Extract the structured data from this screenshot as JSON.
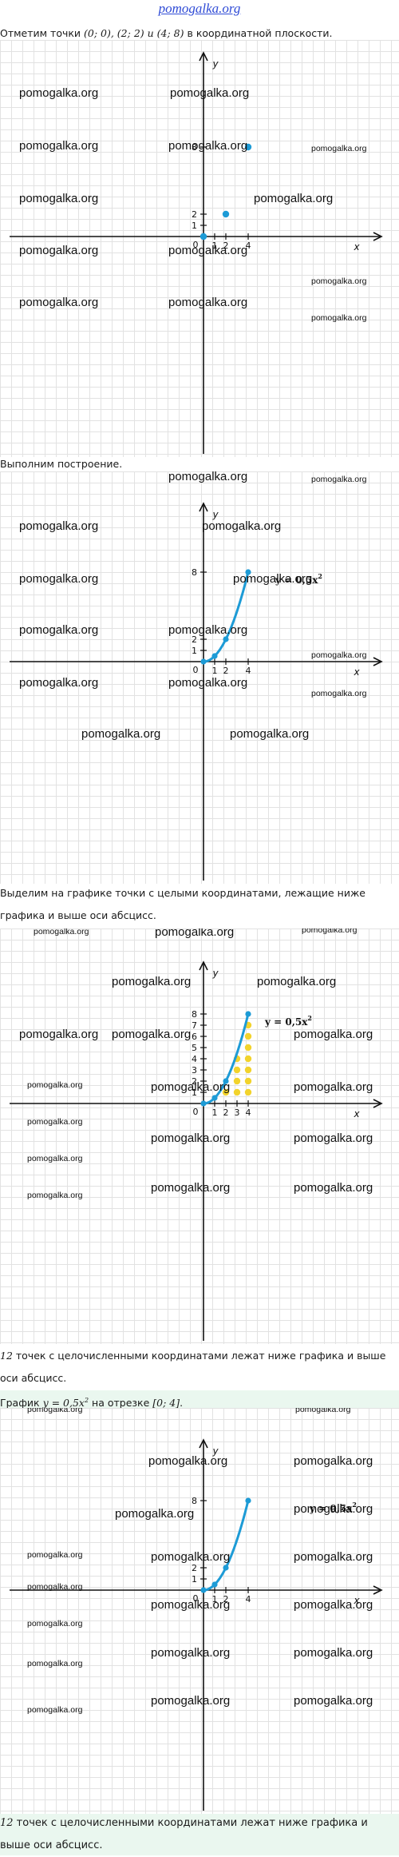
{
  "site": {
    "title": "pomogalka.org"
  },
  "watermark": "pomogalka.org",
  "colors": {
    "curve": "#1d9bd6",
    "points": "#f2d32c",
    "band": "#eaf7ef",
    "title": "#2f4bd6"
  },
  "texts": {
    "p1_a": "Отметим точки ",
    "p1_math": "(0; 0), (2; 2) и (4; 8)",
    "p1_b": " в координатной плоскости.",
    "p2": "Выполним построение.",
    "p3": "Выделим на графике точки с целыми координатами, лежащие ниже графика и выше оси абсцисс.",
    "p4_num": "12",
    "p4": " точек с целочисленными координатами лежат ниже графика и выше оси абсцисс.",
    "p5_a": "График ",
    "p5_math": "y = 0,5x",
    "p5_exp": "2",
    "p5_b": " на отрезке ",
    "p5_seg": "[0; 4]",
    "p5_c": ".",
    "p6_num": "12",
    "p6": " точек с целочисленными координатами лежат ниже графика и выше оси абсцисс."
  },
  "axes": {
    "x_label": "x",
    "y_label": "y",
    "origin": "0",
    "x_ticks": [
      "1",
      "2",
      "4"
    ],
    "x_ticks_full": [
      "1",
      "2",
      "3",
      "4"
    ]
  },
  "chart_data": [
    {
      "type": "scatter",
      "points": [
        [
          0,
          0
        ],
        [
          2,
          2
        ],
        [
          4,
          8
        ]
      ],
      "y_ticks": [
        1,
        2,
        8
      ]
    },
    {
      "type": "line",
      "function": "y = 0,5x^2",
      "label": "y = 0,5x",
      "label_exp": "2",
      "x_range": [
        0,
        4
      ],
      "marked_points": [
        [
          0,
          0
        ],
        [
          1,
          0.5
        ],
        [
          2,
          2
        ],
        [
          4,
          8
        ]
      ],
      "y_ticks": [
        1,
        2,
        8
      ]
    },
    {
      "type": "line",
      "function": "y = 0,5x^2",
      "label": "y = 0,5x",
      "label_exp": "2",
      "x_range": [
        0,
        4
      ],
      "marked_points": [
        [
          0,
          0
        ],
        [
          1,
          0.5
        ],
        [
          2,
          2
        ],
        [
          4,
          8
        ]
      ],
      "y_ticks": [
        1,
        2,
        3,
        4,
        5,
        6,
        7,
        8
      ],
      "integer_points": [
        [
          2,
          1
        ],
        [
          3,
          1
        ],
        [
          3,
          2
        ],
        [
          3,
          3
        ],
        [
          3,
          4
        ],
        [
          4,
          1
        ],
        [
          4,
          2
        ],
        [
          4,
          3
        ],
        [
          4,
          4
        ],
        [
          4,
          5
        ],
        [
          4,
          6
        ],
        [
          4,
          7
        ]
      ]
    },
    {
      "type": "line",
      "function": "y = 0,5x^2",
      "label": "y = 0,5x",
      "label_exp": "2",
      "x_range": [
        0,
        4
      ],
      "marked_points": [
        [
          0,
          0
        ],
        [
          1,
          0.5
        ],
        [
          2,
          2
        ],
        [
          4,
          8
        ]
      ],
      "y_ticks": [
        1,
        2,
        8
      ]
    }
  ]
}
